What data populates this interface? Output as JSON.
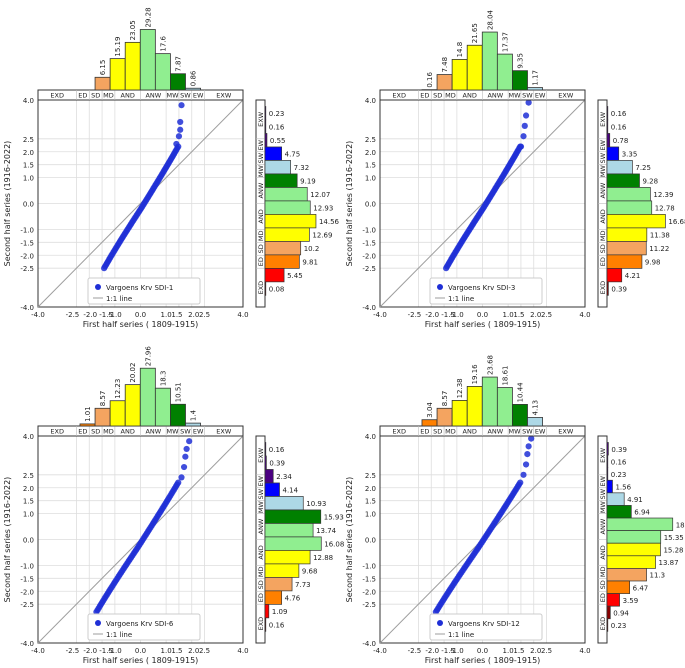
{
  "colors": {
    "ED": "#ff0000",
    "SD": "#ff8000",
    "MD": "#f4a460",
    "AND": "#ffff00",
    "ANW": "#90ee90",
    "MW": "#008000",
    "SW": "#add8e6",
    "EW": "#0000ff",
    "EXW": "#4b0082",
    "EXD": "#8b0000",
    "points": "#1f2fd6",
    "line": "#9e9e9e",
    "grid": "#dddddd"
  },
  "chart_data": [
    {
      "type": "scatter",
      "series_label": "Vargoens Krv SDI-1",
      "line_label": "1:1 line",
      "xlabel": "First half series ( 1809-1915)",
      "ylabel": "Second half series (1916-2022)",
      "xlim": [
        -4.0,
        4.0
      ],
      "ylim": [
        -4.0,
        4.0
      ],
      "x_ticks": [
        "-4.0",
        "-2.5",
        "-2.0",
        "-1.5",
        "-1.0",
        "0.0",
        "1.0",
        "1.5",
        "2.0",
        "2.5",
        "4.0"
      ],
      "y_ticks": [
        "-4.0",
        "-2.5",
        "-2.0",
        "-1.5",
        "-1.0",
        "0.0",
        "1.0",
        "1.5",
        "2.0",
        "2.5",
        "4.0"
      ],
      "classes": [
        "EXD",
        "ED",
        "SD",
        "MD",
        "AND",
        "ANW",
        "MW",
        "SW",
        "EW",
        "EXW"
      ],
      "top_hist": [
        0.0,
        0.0,
        0.0,
        6.15,
        15.19,
        23.05,
        29.28,
        17.6,
        7.87,
        0.86,
        0.0,
        0.0
      ],
      "top_labels": [
        "",
        "",
        "",
        "6.15",
        "15.19",
        "23.05",
        "29.28",
        "17.6",
        "7.87",
        "0.86",
        "",
        ""
      ],
      "right_hist_top_to_bottom": [
        0.23,
        0.16,
        0.55,
        4.75,
        7.32,
        9.19,
        12.07,
        12.93,
        14.56,
        12.69,
        10.2,
        9.81,
        5.45,
        0.08
      ],
      "right_labels": [
        "0.23",
        "0.16",
        "0.55",
        "4.75",
        "7.32",
        "9.19",
        "12.07",
        "12.93",
        "14.56",
        "12.69",
        "10.2",
        "9.81",
        "5.45",
        "0.08"
      ],
      "q_points": {
        "y_min": -2.5,
        "y_max": 3.8,
        "x_min": -1.3,
        "x_max": 1.6,
        "upper_tail": [
          [
            1.4,
            2.3
          ],
          [
            1.5,
            2.6
          ],
          [
            1.55,
            2.85
          ],
          [
            1.55,
            3.15
          ],
          [
            1.6,
            3.8
          ]
        ]
      }
    },
    {
      "type": "scatter",
      "series_label": "Vargoens Krv SDI-3",
      "line_label": "1:1 line",
      "xlabel": "First half series ( 1809-1915)",
      "ylabel": "Second half series (1916-2022)",
      "xlim": [
        -4.0,
        4.0
      ],
      "ylim": [
        -4.0,
        4.0
      ],
      "x_ticks": [
        "-4.0",
        "-2.5",
        "-2.0",
        "-1.5",
        "-1.0",
        "0.0",
        "1.0",
        "1.5",
        "2.0",
        "2.5",
        "4.0"
      ],
      "y_ticks": [
        "-4.0",
        "-2.5",
        "-2.0",
        "-1.5",
        "-1.0",
        "0.0",
        "1.0",
        "1.5",
        "2.0",
        "2.5",
        "4.0"
      ],
      "classes": [
        "EXD",
        "ED",
        "SD",
        "MD",
        "AND",
        "ANW",
        "MW",
        "SW",
        "EW",
        "EXW"
      ],
      "top_hist": [
        0.0,
        0.0,
        0.16,
        7.48,
        14.8,
        21.65,
        28.04,
        17.37,
        9.35,
        1.17,
        0.0,
        0.0
      ],
      "top_labels": [
        "",
        "",
        "0.16",
        "7.48",
        "14.8",
        "21.65",
        "28.04",
        "17.37",
        "9.35",
        "1.17",
        "",
        ""
      ],
      "right_hist_top_to_bottom": [
        0.16,
        0.16,
        0.78,
        3.35,
        7.25,
        9.28,
        12.39,
        12.78,
        16.68,
        11.38,
        11.22,
        9.98,
        4.21,
        0.39
      ],
      "right_labels": [
        "0.16",
        "0.16",
        "0.78",
        "3.35",
        "7.25",
        "9.28",
        "12.39",
        "12.78",
        "16.68",
        "11.38",
        "11.22",
        "9.98",
        "4.21",
        "0.39"
      ],
      "q_points": {
        "y_min": -2.5,
        "y_max": 3.9,
        "x_min": -1.3,
        "x_max": 1.8,
        "upper_tail": [
          [
            1.5,
            2.2
          ],
          [
            1.6,
            2.6
          ],
          [
            1.65,
            3.0
          ],
          [
            1.7,
            3.4
          ],
          [
            1.8,
            3.9
          ]
        ]
      }
    },
    {
      "type": "scatter",
      "series_label": "Vargoens Krv SDI-6",
      "line_label": "1:1 line",
      "xlabel": "First half series ( 1809-1915)",
      "ylabel": "Second half series (1916-2022)",
      "xlim": [
        -4.0,
        4.0
      ],
      "ylim": [
        -4.0,
        4.0
      ],
      "x_ticks": [
        "-4.0",
        "-2.5",
        "-2.0",
        "-1.5",
        "-1.0",
        "0.0",
        "1.0",
        "1.5",
        "2.0",
        "2.5",
        "4.0"
      ],
      "y_ticks": [
        "-4.0",
        "-2.5",
        "-2.0",
        "-1.5",
        "-1.0",
        "0.0",
        "1.0",
        "1.5",
        "2.0",
        "2.5",
        "4.0"
      ],
      "classes": [
        "EXD",
        "ED",
        "SD",
        "MD",
        "AND",
        "ANW",
        "MW",
        "SW",
        "EW",
        "EXW"
      ],
      "top_hist": [
        0.0,
        0.0,
        1.01,
        8.57,
        12.23,
        20.02,
        27.96,
        18.3,
        10.51,
        1.4,
        0.0,
        0.0
      ],
      "top_labels": [
        "",
        "",
        "1.01",
        "8.57",
        "12.23",
        "20.02",
        "27.96",
        "18.3",
        "10.51",
        "1.4",
        "",
        ""
      ],
      "right_hist_top_to_bottom": [
        0.16,
        0.39,
        2.34,
        4.14,
        10.93,
        15.93,
        13.74,
        16.08,
        12.88,
        9.68,
        7.73,
        4.76,
        1.09,
        0.16
      ],
      "right_labels": [
        "0.16",
        "0.39",
        "2.34",
        "4.14",
        "10.93",
        "15.93",
        "13.74",
        "16.08",
        "12.88",
        "9.68",
        "7.73",
        "4.76",
        "1.09",
        "0.16"
      ],
      "q_points": {
        "y_min": -2.8,
        "y_max": 3.8,
        "x_min": -1.6,
        "x_max": 1.9,
        "upper_tail": [
          [
            1.6,
            2.4
          ],
          [
            1.7,
            2.8
          ],
          [
            1.75,
            3.2
          ],
          [
            1.8,
            3.5
          ],
          [
            1.9,
            3.8
          ]
        ]
      }
    },
    {
      "type": "scatter",
      "series_label": "Vargoens Krv SDI-12",
      "line_label": "1:1 line",
      "xlabel": "First half series ( 1809-1915)",
      "ylabel": "Second half series (1916-2022)",
      "xlim": [
        -4.0,
        4.0
      ],
      "ylim": [
        -4.0,
        4.0
      ],
      "x_ticks": [
        "-4.0",
        "-2.5",
        "-2.0",
        "-1.5",
        "-1.0",
        "0.0",
        "1.0",
        "1.5",
        "2.0",
        "2.5",
        "4.0"
      ],
      "y_ticks": [
        "-4.0",
        "-2.5",
        "-2.0",
        "-1.5",
        "-1.0",
        "0.0",
        "1.0",
        "1.5",
        "2.0",
        "2.5",
        "4.0"
      ],
      "classes": [
        "EXD",
        "ED",
        "SD",
        "MD",
        "AND",
        "ANW",
        "MW",
        "SW",
        "EW",
        "EXW"
      ],
      "top_hist": [
        0.0,
        0.0,
        3.04,
        8.57,
        12.38,
        19.16,
        23.68,
        18.61,
        10.44,
        4.13,
        0.0,
        0.0
      ],
      "top_labels": [
        "",
        "",
        "3.04",
        "8.57",
        "12.38",
        "19.16",
        "23.68",
        "18.61",
        "10.44",
        "4.13",
        "",
        ""
      ],
      "right_hist_top_to_bottom": [
        0.39,
        0.16,
        0.23,
        1.56,
        4.91,
        6.94,
        18.78,
        15.35,
        15.28,
        13.87,
        11.3,
        6.47,
        3.59,
        0.94,
        0.23
      ],
      "right_labels": [
        "0.39",
        "0.16",
        "0.23",
        "1.56",
        "4.91",
        "6.94",
        "18.78",
        "15.35",
        "15.28",
        "13.87",
        "11.3",
        "6.47",
        "3.59",
        "0.94",
        "0.23"
      ],
      "q_points": {
        "y_min": -2.8,
        "y_max": 3.9,
        "x_min": -1.7,
        "x_max": 1.9,
        "upper_tail": [
          [
            1.6,
            2.5
          ],
          [
            1.7,
            2.9
          ],
          [
            1.75,
            3.3
          ],
          [
            1.8,
            3.6
          ],
          [
            1.9,
            3.9
          ]
        ]
      }
    }
  ]
}
